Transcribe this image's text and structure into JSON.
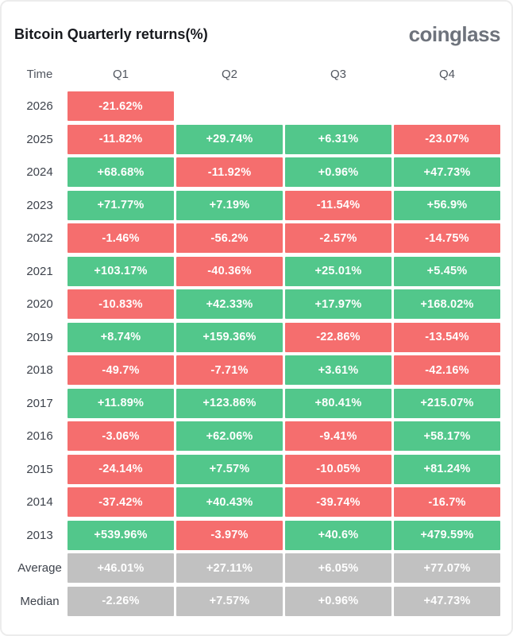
{
  "header": {
    "title": "Bitcoin Quarterly returns(%)",
    "logo_text": "coinglass"
  },
  "colors": {
    "positive": "#52c78b",
    "negative": "#f56e6e",
    "neutral": "#c1c1c1",
    "cell_text": "#ffffff",
    "title_text": "#17191e",
    "logo_text": "#6e737c"
  },
  "table": {
    "columns": [
      "Time",
      "Q1",
      "Q2",
      "Q3",
      "Q4"
    ],
    "rows": [
      {
        "label": "2026",
        "cells": [
          {
            "value": "-21.62%",
            "type": "neg"
          },
          {
            "value": "",
            "type": "empty"
          },
          {
            "value": "",
            "type": "empty"
          },
          {
            "value": "",
            "type": "empty"
          }
        ]
      },
      {
        "label": "2025",
        "cells": [
          {
            "value": "-11.82%",
            "type": "neg"
          },
          {
            "value": "+29.74%",
            "type": "pos"
          },
          {
            "value": "+6.31%",
            "type": "pos"
          },
          {
            "value": "-23.07%",
            "type": "neg"
          }
        ]
      },
      {
        "label": "2024",
        "cells": [
          {
            "value": "+68.68%",
            "type": "pos"
          },
          {
            "value": "-11.92%",
            "type": "neg"
          },
          {
            "value": "+0.96%",
            "type": "pos"
          },
          {
            "value": "+47.73%",
            "type": "pos"
          }
        ]
      },
      {
        "label": "2023",
        "cells": [
          {
            "value": "+71.77%",
            "type": "pos"
          },
          {
            "value": "+7.19%",
            "type": "pos"
          },
          {
            "value": "-11.54%",
            "type": "neg"
          },
          {
            "value": "+56.9%",
            "type": "pos"
          }
        ]
      },
      {
        "label": "2022",
        "cells": [
          {
            "value": "-1.46%",
            "type": "neg"
          },
          {
            "value": "-56.2%",
            "type": "neg"
          },
          {
            "value": "-2.57%",
            "type": "neg"
          },
          {
            "value": "-14.75%",
            "type": "neg"
          }
        ]
      },
      {
        "label": "2021",
        "cells": [
          {
            "value": "+103.17%",
            "type": "pos"
          },
          {
            "value": "-40.36%",
            "type": "neg"
          },
          {
            "value": "+25.01%",
            "type": "pos"
          },
          {
            "value": "+5.45%",
            "type": "pos"
          }
        ]
      },
      {
        "label": "2020",
        "cells": [
          {
            "value": "-10.83%",
            "type": "neg"
          },
          {
            "value": "+42.33%",
            "type": "pos"
          },
          {
            "value": "+17.97%",
            "type": "pos"
          },
          {
            "value": "+168.02%",
            "type": "pos"
          }
        ]
      },
      {
        "label": "2019",
        "cells": [
          {
            "value": "+8.74%",
            "type": "pos"
          },
          {
            "value": "+159.36%",
            "type": "pos"
          },
          {
            "value": "-22.86%",
            "type": "neg"
          },
          {
            "value": "-13.54%",
            "type": "neg"
          }
        ]
      },
      {
        "label": "2018",
        "cells": [
          {
            "value": "-49.7%",
            "type": "neg"
          },
          {
            "value": "-7.71%",
            "type": "neg"
          },
          {
            "value": "+3.61%",
            "type": "pos"
          },
          {
            "value": "-42.16%",
            "type": "neg"
          }
        ]
      },
      {
        "label": "2017",
        "cells": [
          {
            "value": "+11.89%",
            "type": "pos"
          },
          {
            "value": "+123.86%",
            "type": "pos"
          },
          {
            "value": "+80.41%",
            "type": "pos"
          },
          {
            "value": "+215.07%",
            "type": "pos"
          }
        ]
      },
      {
        "label": "2016",
        "cells": [
          {
            "value": "-3.06%",
            "type": "neg"
          },
          {
            "value": "+62.06%",
            "type": "pos"
          },
          {
            "value": "-9.41%",
            "type": "neg"
          },
          {
            "value": "+58.17%",
            "type": "pos"
          }
        ]
      },
      {
        "label": "2015",
        "cells": [
          {
            "value": "-24.14%",
            "type": "neg"
          },
          {
            "value": "+7.57%",
            "type": "pos"
          },
          {
            "value": "-10.05%",
            "type": "neg"
          },
          {
            "value": "+81.24%",
            "type": "pos"
          }
        ]
      },
      {
        "label": "2014",
        "cells": [
          {
            "value": "-37.42%",
            "type": "neg"
          },
          {
            "value": "+40.43%",
            "type": "pos"
          },
          {
            "value": "-39.74%",
            "type": "neg"
          },
          {
            "value": "-16.7%",
            "type": "neg"
          }
        ]
      },
      {
        "label": "2013",
        "cells": [
          {
            "value": "+539.96%",
            "type": "pos"
          },
          {
            "value": "-3.97%",
            "type": "neg"
          },
          {
            "value": "+40.6%",
            "type": "pos"
          },
          {
            "value": "+479.59%",
            "type": "pos"
          }
        ]
      },
      {
        "label": "Average",
        "cells": [
          {
            "value": "+46.01%",
            "type": "avg"
          },
          {
            "value": "+27.11%",
            "type": "avg"
          },
          {
            "value": "+6.05%",
            "type": "avg"
          },
          {
            "value": "+77.07%",
            "type": "avg"
          }
        ]
      },
      {
        "label": "Median",
        "cells": [
          {
            "value": "-2.26%",
            "type": "avg"
          },
          {
            "value": "+7.57%",
            "type": "avg"
          },
          {
            "value": "+0.96%",
            "type": "avg"
          },
          {
            "value": "+47.73%",
            "type": "avg"
          }
        ]
      }
    ]
  },
  "chart_data": {
    "type": "heatmap",
    "title": "Bitcoin Quarterly returns(%)",
    "columns": [
      "Q1",
      "Q2",
      "Q3",
      "Q4"
    ],
    "row_labels": [
      "2026",
      "2025",
      "2024",
      "2023",
      "2022",
      "2021",
      "2020",
      "2019",
      "2018",
      "2017",
      "2016",
      "2015",
      "2014",
      "2013",
      "Average",
      "Median"
    ],
    "values_pct": [
      [
        -21.62,
        null,
        null,
        null
      ],
      [
        -11.82,
        29.74,
        6.31,
        -23.07
      ],
      [
        68.68,
        -11.92,
        0.96,
        47.73
      ],
      [
        71.77,
        7.19,
        -11.54,
        56.9
      ],
      [
        -1.46,
        -56.2,
        -2.57,
        -14.75
      ],
      [
        103.17,
        -40.36,
        25.01,
        5.45
      ],
      [
        -10.83,
        42.33,
        17.97,
        168.02
      ],
      [
        8.74,
        159.36,
        -22.86,
        -13.54
      ],
      [
        -49.7,
        -7.71,
        3.61,
        -42.16
      ],
      [
        11.89,
        123.86,
        80.41,
        215.07
      ],
      [
        -3.06,
        62.06,
        -9.41,
        58.17
      ],
      [
        -24.14,
        7.57,
        -10.05,
        81.24
      ],
      [
        -37.42,
        40.43,
        -39.74,
        -16.7
      ],
      [
        539.96,
        -3.97,
        40.6,
        479.59
      ],
      [
        46.01,
        27.11,
        6.05,
        77.07
      ],
      [
        -2.26,
        7.57,
        0.96,
        47.73
      ]
    ],
    "color_encoding": {
      "positive": "green",
      "negative": "red",
      "aggregate_rows": "gray"
    },
    "grid": false,
    "legend_position": "none"
  }
}
